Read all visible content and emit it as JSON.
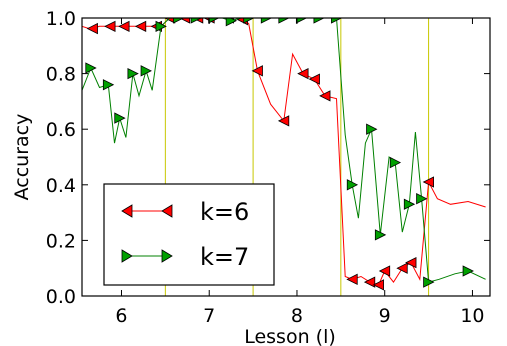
{
  "chart_data": {
    "type": "line",
    "xlabel": "Lesson (l)",
    "ylabel": "Accuracy",
    "xlim": [
      5.55,
      10.2
    ],
    "ylim": [
      0.0,
      1.0
    ],
    "x_ticks": [
      "6",
      "7",
      "8",
      "9",
      "10"
    ],
    "x_tick_values": [
      6,
      7,
      8,
      9,
      10
    ],
    "y_ticks": [
      "0.0",
      "0.2",
      "0.4",
      "0.6",
      "0.8",
      "1.0"
    ],
    "y_tick_values": [
      0.0,
      0.2,
      0.4,
      0.6,
      0.8,
      1.0
    ],
    "vlines": [
      6.5,
      7.5,
      8.5,
      9.5
    ],
    "vline_color": "#c8c800",
    "legend_placement": "lower-left",
    "grid": false,
    "series": [
      {
        "name": "k=6",
        "color": "#ff0000",
        "marker": "triangle-left",
        "marker_fill": "#ff0000",
        "marker_edge": "#000000",
        "x": [
          5.55,
          5.65,
          5.75,
          5.87,
          5.98,
          6.1,
          6.22,
          6.35,
          6.45,
          6.55,
          6.65,
          6.75,
          6.87,
          6.97,
          7.1,
          7.22,
          7.35,
          7.45,
          7.55,
          7.7,
          7.85,
          7.95,
          8.07,
          8.2,
          8.32,
          8.45,
          8.55,
          8.63,
          8.73,
          8.83,
          8.93,
          9.0,
          9.1,
          9.2,
          9.3,
          9.4,
          9.5,
          9.6,
          9.75,
          9.95,
          10.15
        ],
        "y": [
          0.97,
          0.96,
          0.97,
          0.97,
          0.97,
          0.97,
          0.97,
          0.97,
          0.97,
          1.0,
          1.0,
          1.0,
          1.0,
          1.0,
          1.0,
          1.0,
          1.0,
          0.98,
          0.81,
          0.69,
          0.63,
          0.87,
          0.8,
          0.78,
          0.72,
          0.71,
          0.07,
          0.06,
          0.07,
          0.05,
          0.04,
          0.09,
          0.05,
          0.1,
          0.12,
          0.06,
          0.41,
          0.35,
          0.33,
          0.34,
          0.32
        ],
        "markers_at": [
          5.67,
          5.87,
          6.03,
          6.22,
          6.4,
          6.55,
          6.72,
          6.87,
          7.0,
          7.22,
          7.38,
          7.55,
          7.85,
          8.07,
          8.2,
          8.32,
          8.63,
          8.83,
          8.93,
          9.0,
          9.2,
          9.3,
          9.5
        ]
      },
      {
        "name": "k=7",
        "color": "#008000",
        "marker": "triangle-right",
        "marker_fill": "#00a000",
        "marker_edge": "#000000",
        "x": [
          5.55,
          5.65,
          5.75,
          5.85,
          5.92,
          5.98,
          6.05,
          6.13,
          6.2,
          6.28,
          6.35,
          6.45,
          6.55,
          6.65,
          6.75,
          6.85,
          6.95,
          7.05,
          7.15,
          7.25,
          7.35,
          7.45,
          7.55,
          7.65,
          7.75,
          7.85,
          7.95,
          8.05,
          8.15,
          8.25,
          8.35,
          8.45,
          8.55,
          8.63,
          8.7,
          8.78,
          8.85,
          8.95,
          9.05,
          9.12,
          9.2,
          9.28,
          9.35,
          9.42,
          9.5,
          9.62,
          9.8,
          9.95,
          10.15
        ],
        "y": [
          0.74,
          0.82,
          0.75,
          0.76,
          0.55,
          0.64,
          0.57,
          0.8,
          0.72,
          0.81,
          0.74,
          0.97,
          1.0,
          1.0,
          1.0,
          1.0,
          1.0,
          1.0,
          1.0,
          0.99,
          1.0,
          1.0,
          1.0,
          1.0,
          1.0,
          1.0,
          1.0,
          1.0,
          1.0,
          1.0,
          1.0,
          1.0,
          0.58,
          0.4,
          0.28,
          0.55,
          0.6,
          0.22,
          0.5,
          0.48,
          0.23,
          0.33,
          0.59,
          0.35,
          0.05,
          0.06,
          0.08,
          0.09,
          0.06
        ],
        "markers_at": [
          5.65,
          5.85,
          5.98,
          6.13,
          6.28,
          6.45,
          6.65,
          6.85,
          7.05,
          7.25,
          7.45,
          7.65,
          7.85,
          8.05,
          8.25,
          8.45,
          8.63,
          8.85,
          8.95,
          9.12,
          9.28,
          9.42,
          9.5,
          9.95
        ]
      }
    ]
  }
}
